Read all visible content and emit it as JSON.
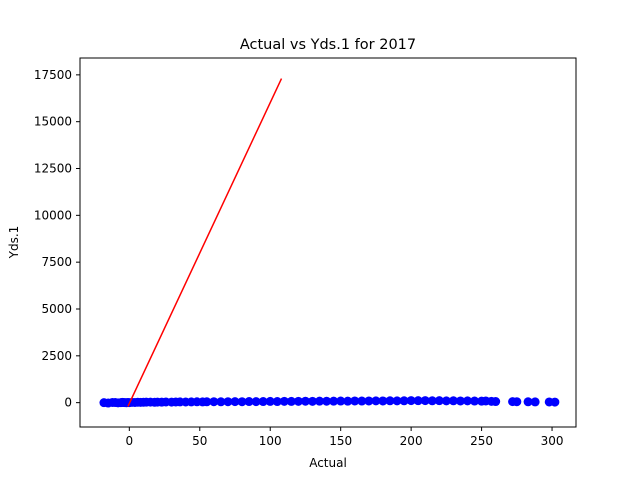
{
  "chart_data": {
    "type": "scatter",
    "title": "Actual vs Yds.1 for 2017",
    "xlabel": "Actual",
    "ylabel": "Yds.1",
    "xlim": [
      -35,
      317
    ],
    "ylim": [
      -1300,
      18400
    ],
    "xticks": [
      0,
      50,
      100,
      150,
      200,
      250,
      300
    ],
    "yticks": [
      0,
      2500,
      5000,
      7500,
      10000,
      12500,
      15000,
      17500
    ],
    "grid": false,
    "colors": {
      "points": "#0000ff",
      "line": "#ff0000"
    },
    "series": [
      {
        "kind": "scatter",
        "x": [
          -18,
          -15,
          -12,
          -10,
          -8,
          -6,
          -5,
          -4,
          -3,
          -2,
          -1,
          0,
          2,
          4,
          6,
          8,
          10,
          12,
          15,
          18,
          20,
          23,
          26,
          30,
          33,
          36,
          40,
          44,
          48,
          52,
          55,
          60,
          65,
          70,
          75,
          80,
          85,
          90,
          95,
          100,
          105,
          110,
          115,
          120,
          125,
          130,
          135,
          140,
          145,
          150,
          155,
          160,
          165,
          170,
          175,
          180,
          185,
          190,
          195,
          200,
          205,
          210,
          215,
          220,
          225,
          230,
          235,
          240,
          245,
          250,
          253,
          257,
          260,
          272,
          275,
          283,
          288,
          298,
          302
        ],
        "y": [
          0,
          -20,
          10,
          5,
          -10,
          0,
          15,
          5,
          0,
          -5,
          10,
          0,
          15,
          10,
          20,
          15,
          20,
          25,
          30,
          20,
          30,
          25,
          35,
          30,
          35,
          40,
          35,
          40,
          45,
          40,
          45,
          50,
          45,
          50,
          55,
          50,
          60,
          55,
          60,
          65,
          60,
          70,
          65,
          70,
          75,
          70,
          80,
          75,
          80,
          85,
          80,
          90,
          85,
          90,
          95,
          90,
          100,
          95,
          100,
          110,
          105,
          110,
          100,
          105,
          95,
          100,
          90,
          95,
          85,
          80,
          90,
          70,
          60,
          55,
          50,
          45,
          40,
          35,
          30
        ]
      },
      {
        "kind": "line",
        "x": [
          -1,
          108
        ],
        "y": [
          -200,
          17300
        ]
      }
    ]
  }
}
